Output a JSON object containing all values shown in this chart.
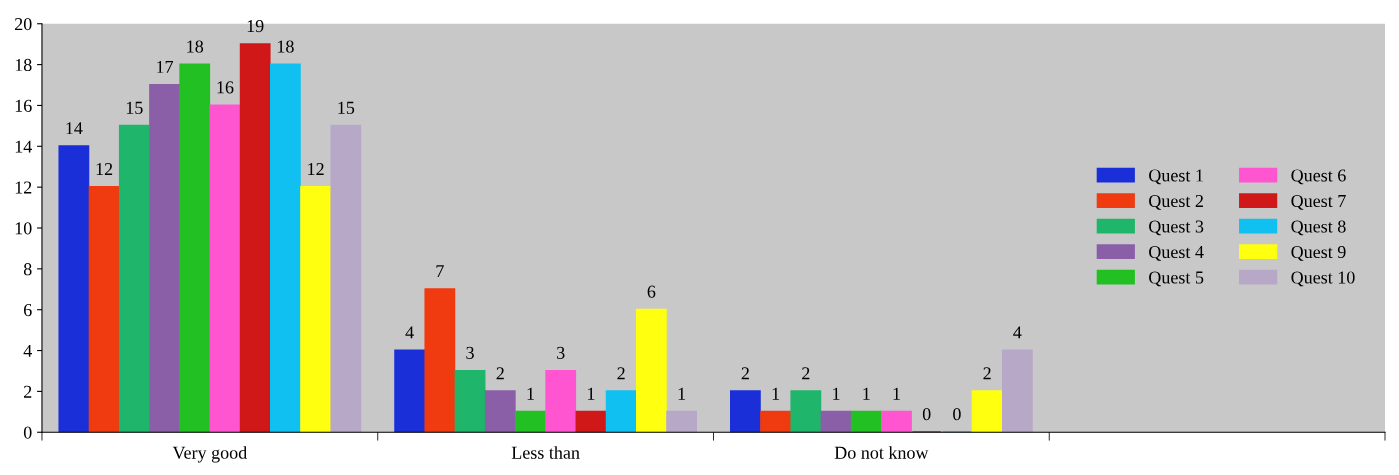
{
  "chart_data": {
    "type": "bar",
    "categories": [
      "Very good",
      "Less than",
      "Do not know",
      null
    ],
    "series": [
      {
        "name": "Quest 1",
        "color": "#1a2fd8",
        "values": [
          14,
          4,
          2,
          null
        ]
      },
      {
        "name": "Quest 2",
        "color": "#f03a10",
        "values": [
          12,
          7,
          1,
          null
        ]
      },
      {
        "name": "Quest 3",
        "color": "#1fb56a",
        "values": [
          15,
          3,
          2,
          null
        ]
      },
      {
        "name": "Quest 4",
        "color": "#8a5fa8",
        "values": [
          17,
          2,
          1,
          null
        ]
      },
      {
        "name": "Quest 5",
        "color": "#22c022",
        "values": [
          18,
          1,
          1,
          null
        ]
      },
      {
        "name": "Quest 6",
        "color": "#ff55d0",
        "values": [
          16,
          3,
          1,
          null
        ]
      },
      {
        "name": "Quest 7",
        "color": "#d01818",
        "values": [
          19,
          1,
          0,
          null
        ]
      },
      {
        "name": "Quest 8",
        "color": "#10c0f0",
        "values": [
          18,
          2,
          0,
          null
        ]
      },
      {
        "name": "Quest 9",
        "color": "#ffff10",
        "values": [
          12,
          6,
          2,
          null
        ]
      },
      {
        "name": "Quest 10",
        "color": "#b8a8c8",
        "values": [
          15,
          1,
          4,
          null
        ]
      }
    ],
    "ylim": [
      0,
      20
    ],
    "yticks": [
      0,
      2,
      4,
      6,
      8,
      10,
      12,
      14,
      16,
      18,
      20
    ],
    "grid": false,
    "legend": "right",
    "data_labels": true
  }
}
